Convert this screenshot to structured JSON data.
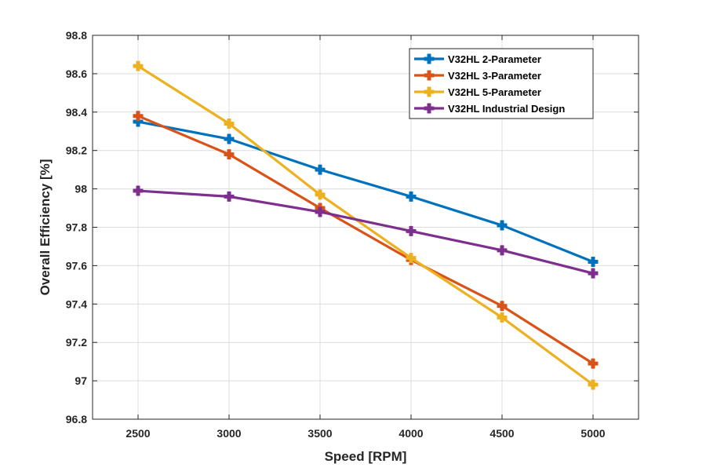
{
  "chart_data": {
    "type": "line",
    "title": "",
    "xlabel": "Speed [RPM]",
    "ylabel": "Overall Efficiency [%]",
    "x": [
      2500,
      3000,
      3500,
      4000,
      4500,
      5000
    ],
    "xlim": [
      2250,
      5250
    ],
    "ylim": [
      96.8,
      98.8
    ],
    "xticks": [
      2500,
      3000,
      3500,
      4000,
      4500,
      5000
    ],
    "xtick_labels": [
      "2500",
      "3000",
      "3500",
      "4000",
      "4500",
      "5000"
    ],
    "yticks": [
      96.8,
      97,
      97.2,
      97.4,
      97.6,
      97.8,
      98,
      98.2,
      98.4,
      98.6,
      98.8
    ],
    "ytick_labels": [
      "96.8",
      "97",
      "97.2",
      "97.4",
      "97.6",
      "97.8",
      "98",
      "98.2",
      "98.4",
      "98.6",
      "98.8"
    ],
    "grid": true,
    "legend_position": "top-right",
    "series": [
      {
        "name": "V32HL 2-Parameter",
        "color": "#0072BD",
        "values": [
          98.35,
          98.26,
          98.1,
          97.96,
          97.81,
          97.62
        ]
      },
      {
        "name": "V32HL 3-Parameter",
        "color": "#D95319",
        "values": [
          98.38,
          98.18,
          97.9,
          97.63,
          97.39,
          97.09
        ]
      },
      {
        "name": "V32HL 5-Parameter",
        "color": "#EDB120",
        "values": [
          98.64,
          98.34,
          97.97,
          97.64,
          97.33,
          96.98
        ]
      },
      {
        "name": "V32HL Industrial Design",
        "color": "#7E2F8E",
        "values": [
          97.99,
          97.96,
          97.88,
          97.78,
          97.68,
          97.56
        ]
      }
    ]
  }
}
